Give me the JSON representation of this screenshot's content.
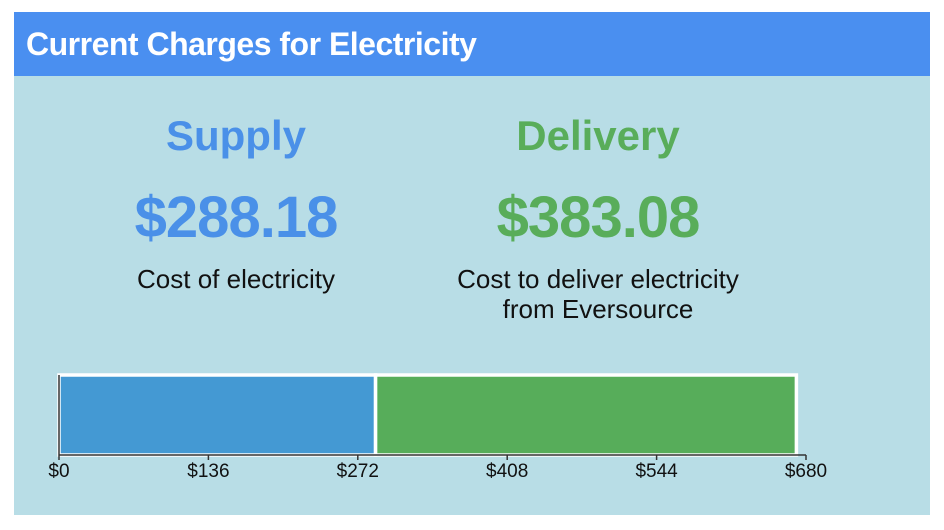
{
  "header": {
    "title": "Current Charges for Electricity"
  },
  "chart_data": {
    "type": "stacked-bar",
    "series": [
      {
        "name": "Supply",
        "color": "#4499d3",
        "text_color": "#4a90e8",
        "values": [
          288.18
        ],
        "value_labels": [
          "$288.18"
        ],
        "description": "Cost of electricity"
      },
      {
        "name": "Delivery",
        "color": "#57ad5a",
        "text_color": "#59ad5a",
        "values": [
          383.08
        ],
        "value_labels": [
          "$383.08"
        ],
        "description": "Cost to deliver electricity\nfrom Eversource"
      }
    ],
    "xlim": [
      0,
      680
    ],
    "xticks": [
      {
        "value": 0,
        "label": "$0"
      },
      {
        "value": 136,
        "label": "$136"
      },
      {
        "value": 272,
        "label": "$272"
      },
      {
        "value": 408,
        "label": "$408"
      },
      {
        "value": 544,
        "label": "$544"
      },
      {
        "value": 680,
        "label": "$680"
      }
    ]
  }
}
